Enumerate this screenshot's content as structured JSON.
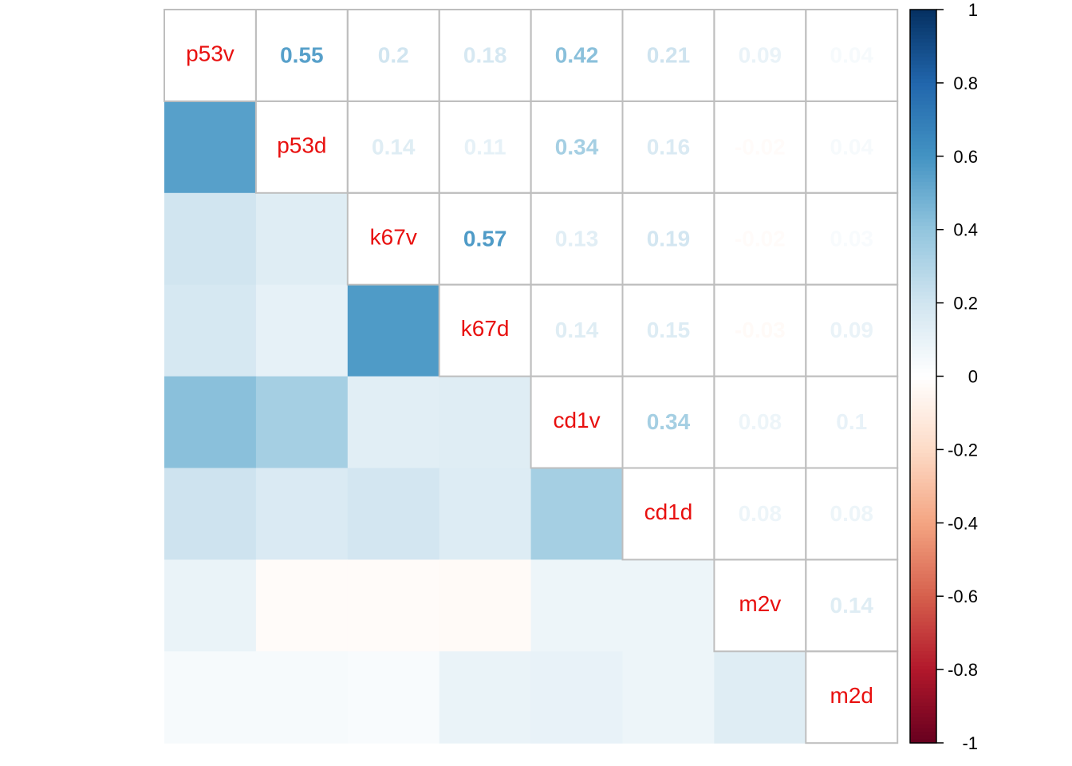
{
  "chart_data": {
    "type": "heatmap",
    "variables": [
      "p53v",
      "p53d",
      "k67v",
      "k67d",
      "cd1v",
      "cd1d",
      "m2v",
      "m2d"
    ],
    "matrix": [
      [
        1,
        0.55,
        0.2,
        0.18,
        0.42,
        0.21,
        0.09,
        0.04
      ],
      [
        0.55,
        1,
        0.14,
        0.11,
        0.34,
        0.16,
        -0.02,
        0.04
      ],
      [
        0.2,
        0.14,
        1,
        0.57,
        0.13,
        0.19,
        -0.02,
        0.03
      ],
      [
        0.18,
        0.11,
        0.57,
        1,
        0.14,
        0.15,
        -0.03,
        0.09
      ],
      [
        0.42,
        0.34,
        0.13,
        0.14,
        1,
        0.34,
        0.08,
        0.1
      ],
      [
        0.21,
        0.16,
        0.19,
        0.15,
        0.34,
        1,
        0.08,
        0.08
      ],
      [
        0.09,
        -0.02,
        -0.02,
        -0.03,
        0.08,
        0.08,
        1,
        0.14
      ],
      [
        0.04,
        0.04,
        0.03,
        0.09,
        0.1,
        0.08,
        0.14,
        1
      ]
    ],
    "upper_triangle": "numbers",
    "lower_triangle": "color squares",
    "diagonal": "variable names",
    "color_range": [
      -1,
      1
    ],
    "colorbar_ticks": [
      "1",
      "0.8",
      "0.6",
      "0.4",
      "0.2",
      "0",
      "-0.2",
      "-0.4",
      "-0.6",
      "-0.8",
      "-1"
    ],
    "colors": {
      "label_text": "#e8100f",
      "grid_line": "#bebebe",
      "palette": [
        "#67001f",
        "#b2182b",
        "#d6604d",
        "#f4a582",
        "#fddbc7",
        "#ffffff",
        "#d1e5f0",
        "#92c5de",
        "#4393c3",
        "#2166ac",
        "#053061"
      ]
    },
    "legend_position": "right"
  }
}
